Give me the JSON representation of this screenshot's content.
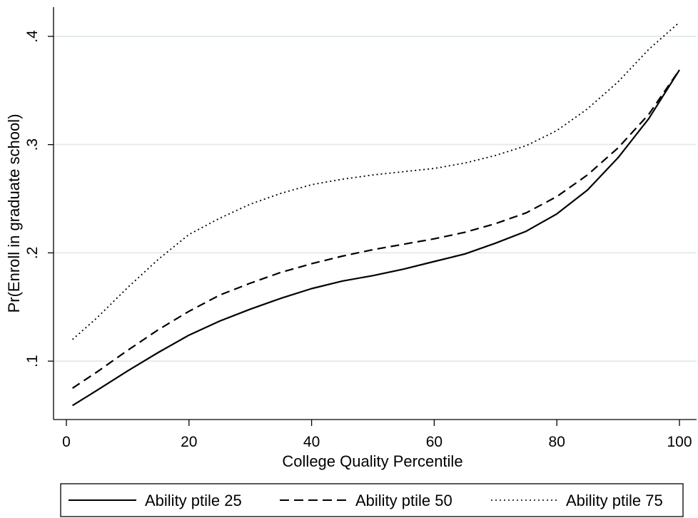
{
  "chart_data": {
    "type": "line",
    "xlabel": "College Quality Percentile",
    "ylabel": "Pr(Enroll in graduate school)",
    "xlim": [
      0,
      100
    ],
    "ylim": [
      0.0467,
      0.427
    ],
    "xticks": [
      0,
      20,
      40,
      60,
      80,
      100
    ],
    "xtick_labels": [
      "0",
      "20",
      "40",
      "60",
      "80",
      "100"
    ],
    "yticks": [
      0.1,
      0.2,
      0.3,
      0.4
    ],
    "ytick_labels": [
      ".1",
      ".2",
      ".3",
      ".4"
    ],
    "grid": "horizontal",
    "legend_position": "bottom",
    "series": [
      {
        "name": "Ability ptile 25",
        "style": "solid",
        "x": [
          1,
          5,
          10,
          15,
          20,
          25,
          30,
          35,
          40,
          45,
          50,
          55,
          60,
          65,
          70,
          75,
          80,
          85,
          90,
          95,
          100
        ],
        "y": [
          0.059,
          0.073,
          0.091,
          0.108,
          0.124,
          0.137,
          0.148,
          0.158,
          0.167,
          0.174,
          0.179,
          0.185,
          0.192,
          0.199,
          0.209,
          0.22,
          0.236,
          0.258,
          0.288,
          0.324,
          0.369
        ]
      },
      {
        "name": "Ability ptile 50",
        "style": "dashed",
        "x": [
          1,
          5,
          10,
          15,
          20,
          25,
          30,
          35,
          40,
          45,
          50,
          55,
          60,
          65,
          70,
          75,
          80,
          85,
          90,
          95,
          100
        ],
        "y": [
          0.075,
          0.09,
          0.11,
          0.129,
          0.146,
          0.161,
          0.172,
          0.182,
          0.19,
          0.197,
          0.203,
          0.208,
          0.213,
          0.219,
          0.227,
          0.237,
          0.252,
          0.272,
          0.297,
          0.328,
          0.369
        ]
      },
      {
        "name": "Ability ptile 75",
        "style": "dotted",
        "x": [
          1,
          5,
          10,
          15,
          20,
          25,
          30,
          35,
          40,
          45,
          50,
          55,
          60,
          65,
          70,
          75,
          80,
          85,
          90,
          95,
          100
        ],
        "y": [
          0.12,
          0.14,
          0.168,
          0.194,
          0.217,
          0.232,
          0.245,
          0.255,
          0.263,
          0.268,
          0.272,
          0.275,
          0.278,
          0.283,
          0.29,
          0.299,
          0.313,
          0.333,
          0.358,
          0.388,
          0.413
        ]
      }
    ]
  }
}
